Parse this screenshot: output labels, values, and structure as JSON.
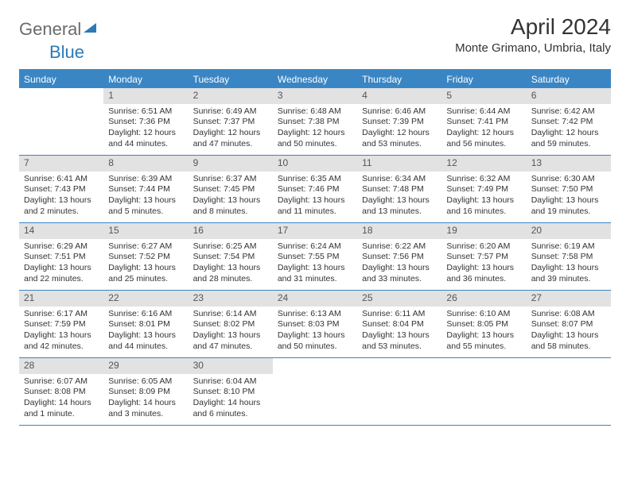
{
  "logo": {
    "part1": "General",
    "part2": "Blue"
  },
  "title": "April 2024",
  "location": "Monte Grimano, Umbria, Italy",
  "weekdays": [
    "Sunday",
    "Monday",
    "Tuesday",
    "Wednesday",
    "Thursday",
    "Friday",
    "Saturday"
  ],
  "colors": {
    "header_blue": "#3a86c4",
    "daynum_bg": "#e2e2e2",
    "text": "#333333",
    "logo_gray": "#6b6b6b",
    "logo_blue": "#2a7ab8",
    "white": "#ffffff"
  },
  "weeks": [
    [
      {
        "day": "",
        "sunrise": "",
        "sunset": "",
        "daylight": ""
      },
      {
        "day": "1",
        "sunrise": "Sunrise: 6:51 AM",
        "sunset": "Sunset: 7:36 PM",
        "daylight": "Daylight: 12 hours and 44 minutes."
      },
      {
        "day": "2",
        "sunrise": "Sunrise: 6:49 AM",
        "sunset": "Sunset: 7:37 PM",
        "daylight": "Daylight: 12 hours and 47 minutes."
      },
      {
        "day": "3",
        "sunrise": "Sunrise: 6:48 AM",
        "sunset": "Sunset: 7:38 PM",
        "daylight": "Daylight: 12 hours and 50 minutes."
      },
      {
        "day": "4",
        "sunrise": "Sunrise: 6:46 AM",
        "sunset": "Sunset: 7:39 PM",
        "daylight": "Daylight: 12 hours and 53 minutes."
      },
      {
        "day": "5",
        "sunrise": "Sunrise: 6:44 AM",
        "sunset": "Sunset: 7:41 PM",
        "daylight": "Daylight: 12 hours and 56 minutes."
      },
      {
        "day": "6",
        "sunrise": "Sunrise: 6:42 AM",
        "sunset": "Sunset: 7:42 PM",
        "daylight": "Daylight: 12 hours and 59 minutes."
      }
    ],
    [
      {
        "day": "7",
        "sunrise": "Sunrise: 6:41 AM",
        "sunset": "Sunset: 7:43 PM",
        "daylight": "Daylight: 13 hours and 2 minutes."
      },
      {
        "day": "8",
        "sunrise": "Sunrise: 6:39 AM",
        "sunset": "Sunset: 7:44 PM",
        "daylight": "Daylight: 13 hours and 5 minutes."
      },
      {
        "day": "9",
        "sunrise": "Sunrise: 6:37 AM",
        "sunset": "Sunset: 7:45 PM",
        "daylight": "Daylight: 13 hours and 8 minutes."
      },
      {
        "day": "10",
        "sunrise": "Sunrise: 6:35 AM",
        "sunset": "Sunset: 7:46 PM",
        "daylight": "Daylight: 13 hours and 11 minutes."
      },
      {
        "day": "11",
        "sunrise": "Sunrise: 6:34 AM",
        "sunset": "Sunset: 7:48 PM",
        "daylight": "Daylight: 13 hours and 13 minutes."
      },
      {
        "day": "12",
        "sunrise": "Sunrise: 6:32 AM",
        "sunset": "Sunset: 7:49 PM",
        "daylight": "Daylight: 13 hours and 16 minutes."
      },
      {
        "day": "13",
        "sunrise": "Sunrise: 6:30 AM",
        "sunset": "Sunset: 7:50 PM",
        "daylight": "Daylight: 13 hours and 19 minutes."
      }
    ],
    [
      {
        "day": "14",
        "sunrise": "Sunrise: 6:29 AM",
        "sunset": "Sunset: 7:51 PM",
        "daylight": "Daylight: 13 hours and 22 minutes."
      },
      {
        "day": "15",
        "sunrise": "Sunrise: 6:27 AM",
        "sunset": "Sunset: 7:52 PM",
        "daylight": "Daylight: 13 hours and 25 minutes."
      },
      {
        "day": "16",
        "sunrise": "Sunrise: 6:25 AM",
        "sunset": "Sunset: 7:54 PM",
        "daylight": "Daylight: 13 hours and 28 minutes."
      },
      {
        "day": "17",
        "sunrise": "Sunrise: 6:24 AM",
        "sunset": "Sunset: 7:55 PM",
        "daylight": "Daylight: 13 hours and 31 minutes."
      },
      {
        "day": "18",
        "sunrise": "Sunrise: 6:22 AM",
        "sunset": "Sunset: 7:56 PM",
        "daylight": "Daylight: 13 hours and 33 minutes."
      },
      {
        "day": "19",
        "sunrise": "Sunrise: 6:20 AM",
        "sunset": "Sunset: 7:57 PM",
        "daylight": "Daylight: 13 hours and 36 minutes."
      },
      {
        "day": "20",
        "sunrise": "Sunrise: 6:19 AM",
        "sunset": "Sunset: 7:58 PM",
        "daylight": "Daylight: 13 hours and 39 minutes."
      }
    ],
    [
      {
        "day": "21",
        "sunrise": "Sunrise: 6:17 AM",
        "sunset": "Sunset: 7:59 PM",
        "daylight": "Daylight: 13 hours and 42 minutes."
      },
      {
        "day": "22",
        "sunrise": "Sunrise: 6:16 AM",
        "sunset": "Sunset: 8:01 PM",
        "daylight": "Daylight: 13 hours and 44 minutes."
      },
      {
        "day": "23",
        "sunrise": "Sunrise: 6:14 AM",
        "sunset": "Sunset: 8:02 PM",
        "daylight": "Daylight: 13 hours and 47 minutes."
      },
      {
        "day": "24",
        "sunrise": "Sunrise: 6:13 AM",
        "sunset": "Sunset: 8:03 PM",
        "daylight": "Daylight: 13 hours and 50 minutes."
      },
      {
        "day": "25",
        "sunrise": "Sunrise: 6:11 AM",
        "sunset": "Sunset: 8:04 PM",
        "daylight": "Daylight: 13 hours and 53 minutes."
      },
      {
        "day": "26",
        "sunrise": "Sunrise: 6:10 AM",
        "sunset": "Sunset: 8:05 PM",
        "daylight": "Daylight: 13 hours and 55 minutes."
      },
      {
        "day": "27",
        "sunrise": "Sunrise: 6:08 AM",
        "sunset": "Sunset: 8:07 PM",
        "daylight": "Daylight: 13 hours and 58 minutes."
      }
    ],
    [
      {
        "day": "28",
        "sunrise": "Sunrise: 6:07 AM",
        "sunset": "Sunset: 8:08 PM",
        "daylight": "Daylight: 14 hours and 1 minute."
      },
      {
        "day": "29",
        "sunrise": "Sunrise: 6:05 AM",
        "sunset": "Sunset: 8:09 PM",
        "daylight": "Daylight: 14 hours and 3 minutes."
      },
      {
        "day": "30",
        "sunrise": "Sunrise: 6:04 AM",
        "sunset": "Sunset: 8:10 PM",
        "daylight": "Daylight: 14 hours and 6 minutes."
      },
      {
        "day": "",
        "sunrise": "",
        "sunset": "",
        "daylight": ""
      },
      {
        "day": "",
        "sunrise": "",
        "sunset": "",
        "daylight": ""
      },
      {
        "day": "",
        "sunrise": "",
        "sunset": "",
        "daylight": ""
      },
      {
        "day": "",
        "sunrise": "",
        "sunset": "",
        "daylight": ""
      }
    ]
  ]
}
